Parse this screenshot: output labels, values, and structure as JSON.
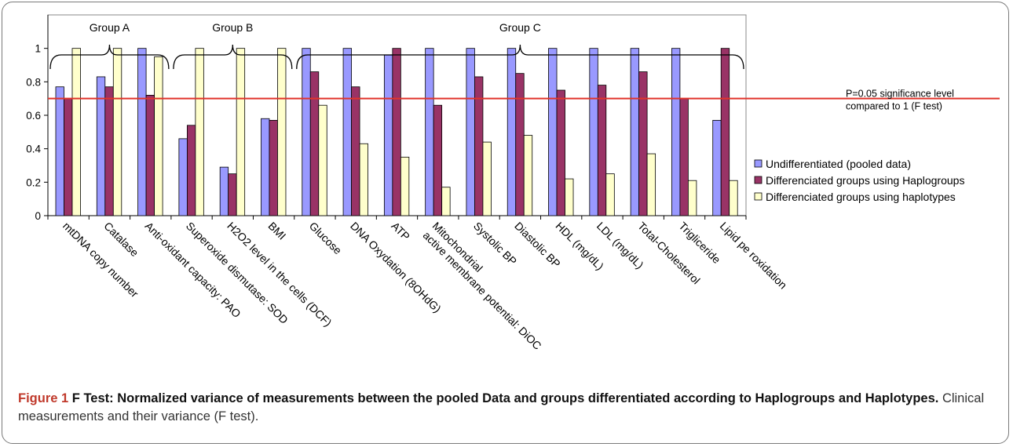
{
  "chart_data": {
    "type": "bar",
    "categories": [
      "mtDNA copy number",
      "Catalase",
      "Anti-oxidant capacity: PAO",
      "Superoxide dismutase: SOD",
      "H2O2 level in the cells (DCF)",
      "BMI",
      "Glucose",
      "DNA Oxydation (8OHdG)",
      "ATP",
      [
        "Mitochondrial",
        "active membrane potential: DiOC"
      ],
      "Systolic BP",
      "Diastolic BP",
      "HDL (mg/dL)",
      "LDL (mg/dL)",
      "Total-Cholesterol",
      "Trigliceride",
      "Lipid pe roxidation"
    ],
    "series": [
      {
        "name": "Undifferentiated (pooled data)",
        "color": "#9999ff",
        "values": [
          0.77,
          0.83,
          1.0,
          0.46,
          0.29,
          0.58,
          1.0,
          1.0,
          0.96,
          1.0,
          1.0,
          1.0,
          1.0,
          1.0,
          1.0,
          1.0,
          0.57
        ]
      },
      {
        "name": "Differenciated groups using Haplogroups",
        "color": "#993366",
        "values": [
          0.7,
          0.77,
          0.72,
          0.54,
          0.25,
          0.57,
          0.86,
          0.77,
          1.0,
          0.66,
          0.83,
          0.85,
          0.75,
          0.78,
          0.86,
          0.7,
          1.0
        ]
      },
      {
        "name": "Differenciated groups using haplotypes",
        "color": "#ffffcc",
        "values": [
          1.0,
          1.0,
          0.95,
          1.0,
          1.0,
          1.0,
          0.66,
          0.43,
          0.35,
          0.17,
          0.44,
          0.48,
          0.22,
          0.25,
          0.37,
          0.21,
          0.21
        ]
      }
    ],
    "yticks": [
      "0",
      "0.2",
      "0.4",
      "0.6",
      "0.8",
      "1"
    ],
    "ylim": [
      0,
      1.2
    ],
    "grid": false,
    "legend_position": "right",
    "reference_line": {
      "value": 0.7,
      "color": "#e0342b",
      "label": [
        "P=0.05 significance level",
        "compared to 1 (F test)"
      ]
    },
    "groups": [
      {
        "label": "Group A",
        "from": 0,
        "to": 2
      },
      {
        "label": "Group B",
        "from": 3,
        "to": 5
      },
      {
        "label": "Group C",
        "from": 6,
        "to": 16
      }
    ]
  },
  "caption": {
    "lead": "Figure 1",
    "title": "F Test: Normalized variance of measurements between the pooled Data and groups differentiated according to Haplogroups and Haplotypes.",
    "rest": "Clinical measurements and their variance (F test)."
  }
}
